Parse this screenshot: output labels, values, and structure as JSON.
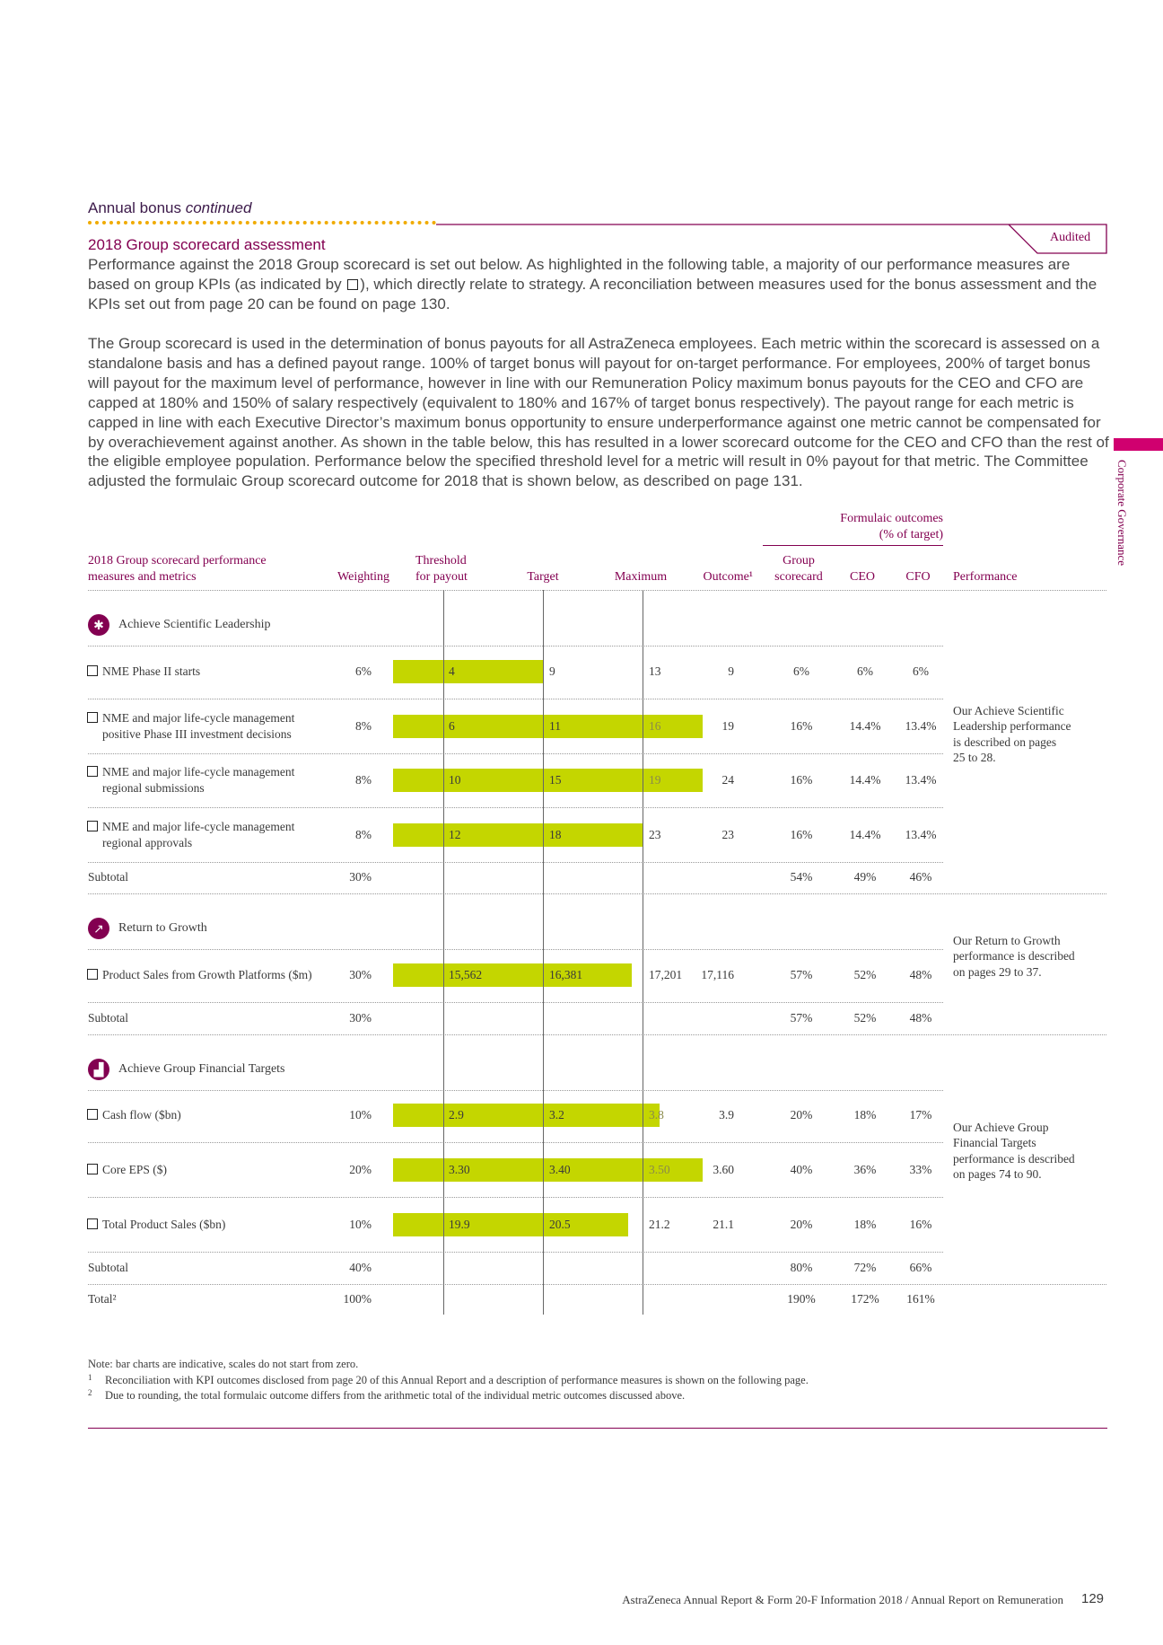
{
  "header": {
    "section": "Annual bonus",
    "section_suffix": "continued",
    "audited": "Audited",
    "subtitle": "2018 Group scorecard assessment"
  },
  "paragraphs": [
    [
      "Performance against the 2018 Group scorecard is set out below. As highlighted in the following table, a majority of our performance measures are based on group KPIs (as indicated by ",
      "), which directly relate to strategy. A reconciliation between measures used for the bonus assessment and the KPIs set out from page 20 can be found on page 130."
    ],
    [
      "The Group scorecard is used in the determination of bonus payouts for all AstraZeneca employees. Each metric within the scorecard is assessed on a standalone basis and has a defined payout range. 100% of target bonus will payout for on-target performance. For employees, 200% of target bonus will payout for the maximum level of performance, however in line with our Remuneration Policy maximum bonus payouts for the CEO and CFO are capped at 180% and 150% of salary respectively (equivalent to 180% and 167% of target bonus respectively). The payout range for each metric is capped in line with each Executive Director’s maximum bonus opportunity to ensure underperformance against one metric cannot be compensated for by overachievement against another. As shown in the table below, this has resulted in a lower scorecard outcome for the CEO and CFO than the rest of the eligible employee population. Performance below the specified threshold level for a metric will result in 0% payout for that metric. The Committee adjusted the formulaic Group scorecard outcome for 2018 that is shown below, as described on page 131."
    ]
  ],
  "table": {
    "group_header": [
      "Formulaic outcomes",
      "(% of target)"
    ],
    "columns": {
      "measure": [
        "2018 Group scorecard performance",
        "measures and metrics"
      ],
      "weighting": "Weighting",
      "threshold": [
        "Threshold",
        "for payout"
      ],
      "target": "Target",
      "maximum": "Maximum",
      "outcome": "Outcome¹",
      "group": [
        "Group",
        "scorecard"
      ],
      "ceo": "CEO",
      "cfo": "CFO",
      "performance": "Performance"
    },
    "groups": [
      {
        "title": "Achieve Scientific Leadership",
        "rows": [
          {
            "label": [
              "NME Phase II starts"
            ],
            "weighting": "6%",
            "threshold": "4",
            "target": "9",
            "maximum": "13",
            "outcome": "9",
            "group": "6%",
            "ceo": "6%",
            "cfo": "6%"
          },
          {
            "label": [
              "NME and major life-cycle management",
              "positive Phase III investment decisions"
            ],
            "weighting": "8%",
            "threshold": "6",
            "target": "11",
            "maximum": "16",
            "outcome": "19",
            "group": "16%",
            "ceo": "14.4%",
            "cfo": "13.4%"
          },
          {
            "label": [
              "NME and major life-cycle management",
              "regional submissions"
            ],
            "weighting": "8%",
            "threshold": "10",
            "target": "15",
            "maximum": "19",
            "outcome": "24",
            "group": "16%",
            "ceo": "14.4%",
            "cfo": "13.4%"
          },
          {
            "label": [
              "NME and major life-cycle management",
              "regional approvals"
            ],
            "weighting": "8%",
            "threshold": "12",
            "target": "18",
            "maximum": "23",
            "outcome": "23",
            "group": "16%",
            "ceo": "14.4%",
            "cfo": "13.4%"
          }
        ],
        "subtotal": {
          "label": "Subtotal",
          "weighting": "30%",
          "group": "54%",
          "ceo": "49%",
          "cfo": "46%"
        },
        "performance": [
          "Our Achieve Scientific",
          "Leadership performance",
          "is described on pages",
          "25 to 28."
        ]
      },
      {
        "title": "Return to Growth",
        "rows": [
          {
            "label": [
              "Product Sales from Growth Platforms ($m)"
            ],
            "weighting": "30%",
            "threshold": "15,562",
            "target": "16,381",
            "maximum": "17,201",
            "outcome": "17,116",
            "group": "57%",
            "ceo": "52%",
            "cfo": "48%"
          }
        ],
        "subtotal": {
          "label": "Subtotal",
          "weighting": "30%",
          "group": "57%",
          "ceo": "52%",
          "cfo": "48%"
        },
        "performance": [
          "Our Return to Growth",
          "performance is described",
          "on pages 29 to 37."
        ]
      },
      {
        "title": "Achieve Group Financial Targets",
        "rows": [
          {
            "label": [
              "Cash flow ($bn)"
            ],
            "weighting": "10%",
            "threshold": "2.9",
            "target": "3.2",
            "maximum": "3.8",
            "outcome": "3.9",
            "group": "20%",
            "ceo": "18%",
            "cfo": "17%"
          },
          {
            "label": [
              "Core EPS ($)"
            ],
            "weighting": "20%",
            "threshold": "3.30",
            "target": "3.40",
            "maximum": "3.50",
            "outcome": "3.60",
            "group": "40%",
            "ceo": "36%",
            "cfo": "33%"
          },
          {
            "label": [
              "Total Product Sales ($bn)"
            ],
            "weighting": "10%",
            "threshold": "19.9",
            "target": "20.5",
            "maximum": "21.2",
            "outcome": "21.1",
            "group": "20%",
            "ceo": "18%",
            "cfo": "16%"
          }
        ],
        "subtotal": {
          "label": "Subtotal",
          "weighting": "40%",
          "group": "80%",
          "ceo": "72%",
          "cfo": "66%"
        },
        "performance": [
          "Our Achieve Group",
          "Financial Targets",
          "performance is described",
          "on pages 74 to 90."
        ]
      }
    ],
    "total": {
      "label": "Total²",
      "weighting": "100%",
      "group": "190%",
      "ceo": "172%",
      "cfo": "161%"
    }
  },
  "notes": {
    "note": "Note: bar charts are indicative, scales do not start from zero.",
    "footnotes": [
      {
        "marker": "1",
        "text": "Reconciliation with KPI outcomes disclosed from page 20 of this Annual Report and a description of performance measures is shown on the following page."
      },
      {
        "marker": "2",
        "text": "Due to rounding, the total formulaic outcome differs from the arithmetic total of the individual metric outcomes discussed above."
      }
    ]
  },
  "side_tab": "Corporate Governance",
  "footer": {
    "text": "AstraZeneca Annual Report & Form 20-F Information 2018 / Annual Report on Remuneration",
    "page_number": "129"
  }
}
